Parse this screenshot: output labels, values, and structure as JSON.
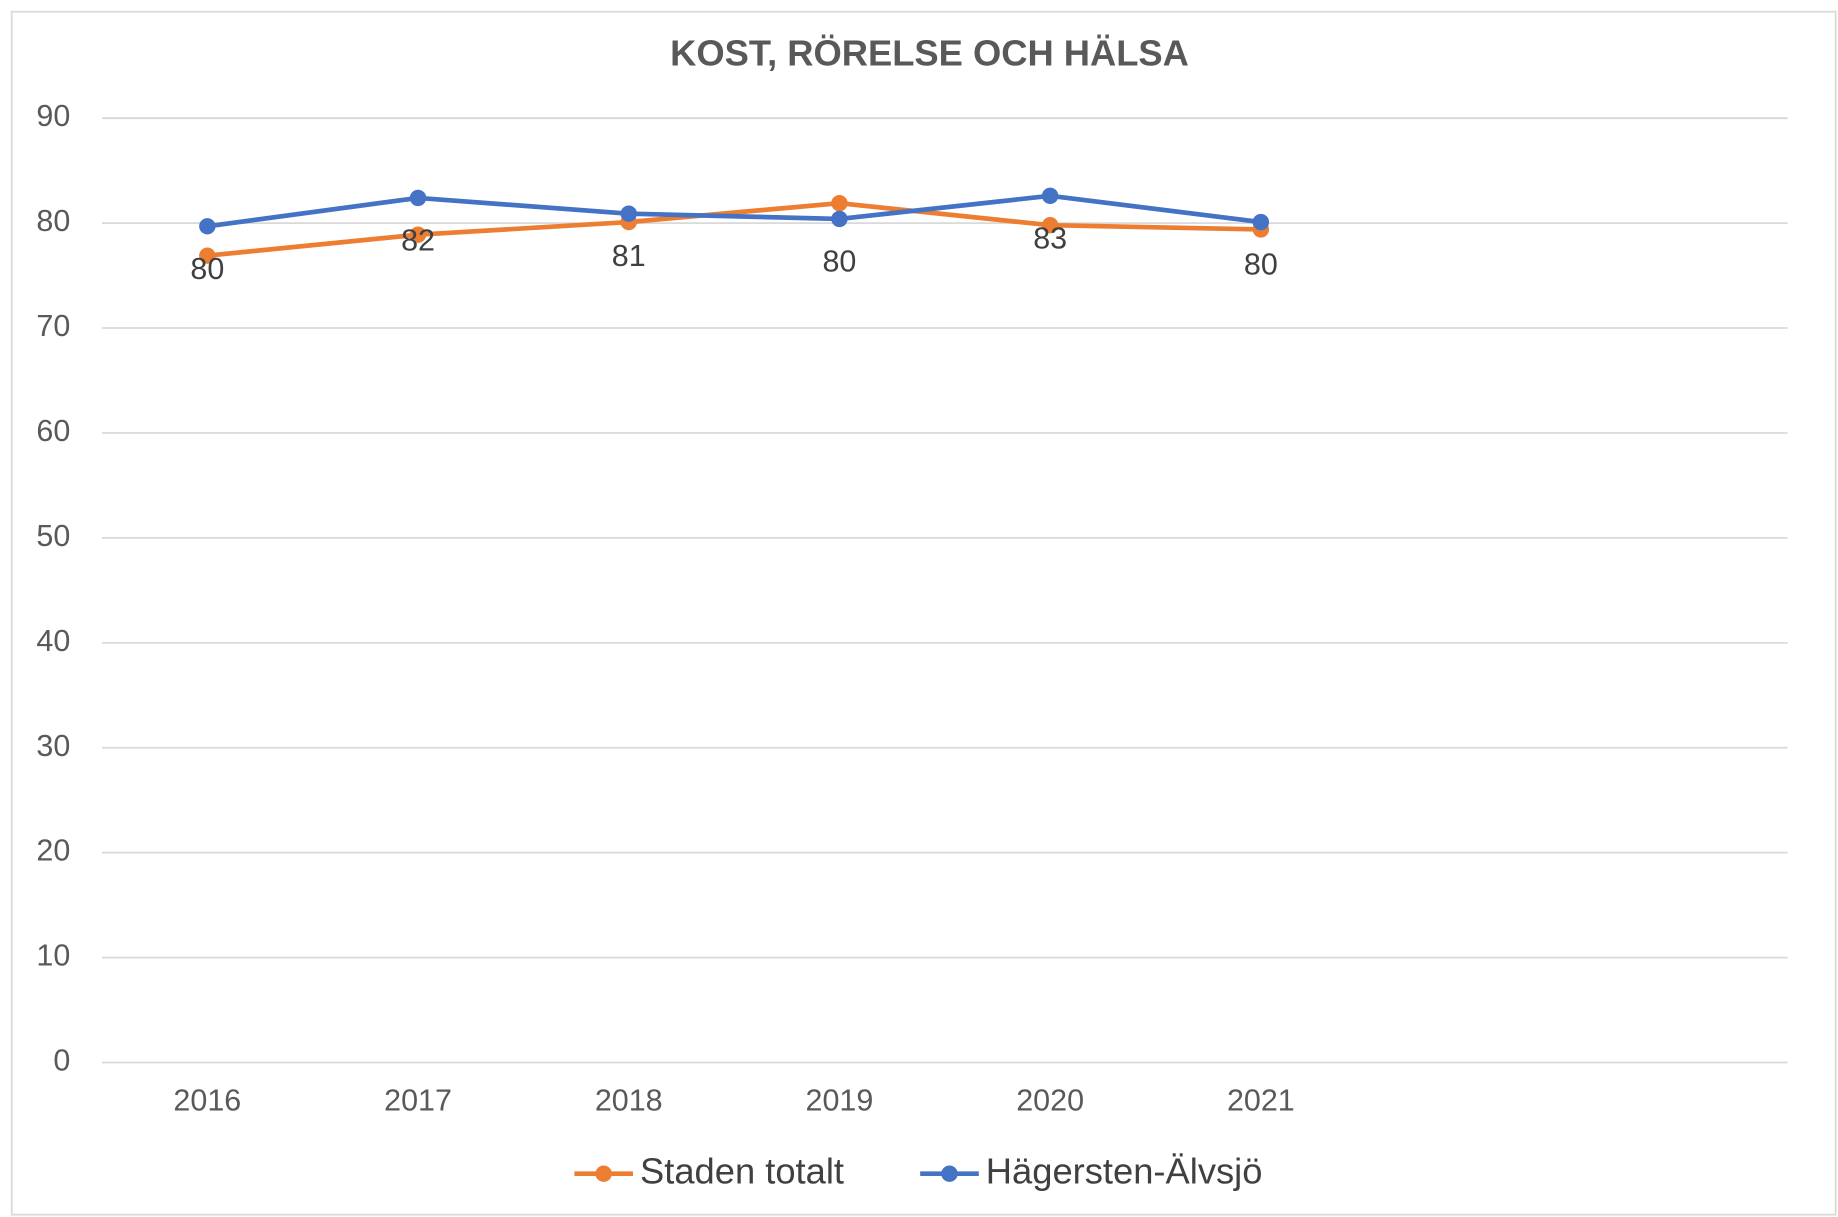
{
  "chart_data": {
    "type": "line",
    "title": "KOST, RÖRELSE OCH HÄLSA",
    "categories": [
      "2016",
      "2017",
      "2018",
      "2019",
      "2020",
      "2021",
      null,
      null
    ],
    "series": [
      {
        "name": "Staden totalt",
        "color": "#ed7d31",
        "values": [
          76.9,
          78.9,
          80.1,
          81.9,
          79.8,
          79.4,
          null,
          null
        ]
      },
      {
        "name": "Hägersten-Älvsjö",
        "color": "#4472c4",
        "values": [
          79.7,
          82.4,
          80.9,
          80.4,
          82.6,
          80.1,
          null,
          null
        ],
        "value_labels": [
          "80",
          "82",
          "81",
          "80",
          "83",
          "80",
          null,
          null
        ]
      }
    ],
    "ylim": [
      0,
      90
    ],
    "yticks": [
      0,
      10,
      20,
      30,
      40,
      50,
      60,
      70,
      80,
      90
    ],
    "grid": true,
    "legend": "bottom"
  }
}
